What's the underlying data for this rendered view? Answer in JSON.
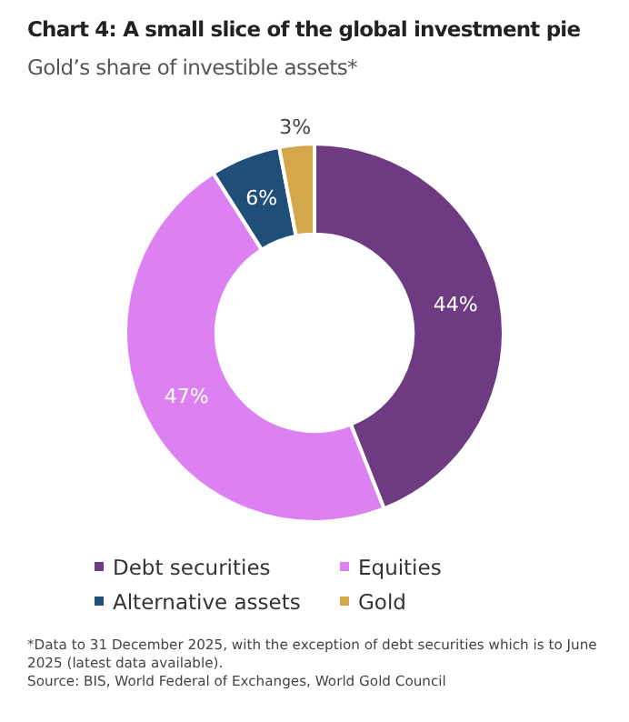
{
  "chart_data": {
    "type": "donut",
    "title": "Chart 4: A small slice of the global investment pie",
    "subtitle": "Gold’s share of investible assets*",
    "categories": [
      "Debt securities",
      "Equities",
      "Alternative assets",
      "Gold"
    ],
    "values": [
      44,
      47,
      6,
      3
    ],
    "colors": [
      "#6e3b82",
      "#dc80f2",
      "#1f4e79",
      "#d4a84a"
    ],
    "value_labels": [
      "44%",
      "47%",
      "6%",
      "3%"
    ],
    "legend": "bottom",
    "annotations": [
      "*Data to 31 December 2025, with the exception of debt securities which is to June 2025 (latest data available).",
      "Source: BIS, World Federal of Exchanges, World Gold Council"
    ]
  }
}
